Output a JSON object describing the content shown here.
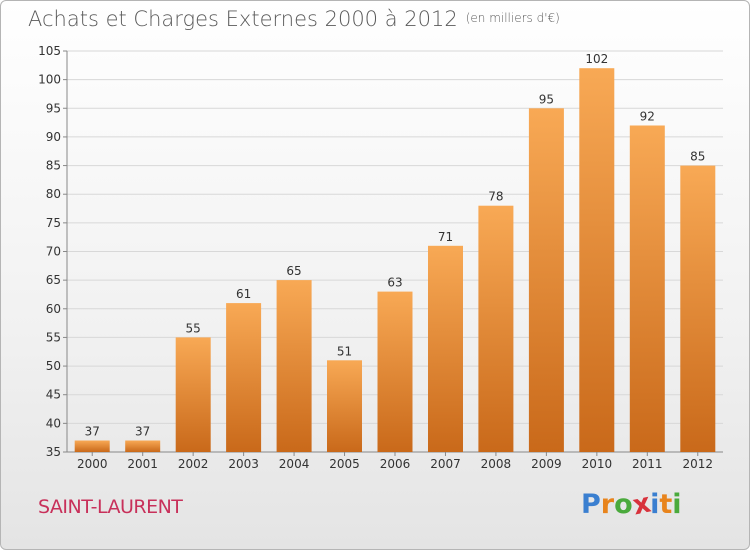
{
  "title": "Achats et Charges Externes 2000 à 2012",
  "unit": "(en milliers d'€)",
  "commune": "SAINT-LAURENT",
  "logo": {
    "text": "Proxiti",
    "letters": [
      "P",
      "r",
      "o",
      "x",
      "i",
      "t",
      "i"
    ],
    "colors": [
      "#3a7fd0",
      "#e8841c",
      "#4aaa3c",
      "#d8323c",
      "#3a7fd0",
      "#e8841c",
      "#4aaa3c"
    ]
  },
  "colors": {
    "bar_top": "#f8a955",
    "bar_bottom": "#c9691a",
    "grid": "#d8d8d8",
    "axis": "#888888"
  },
  "chart_data": {
    "type": "bar",
    "title": "Achats et Charges Externes 2000 à 2012",
    "subtitle": "(en milliers d'€)",
    "xlabel": "",
    "ylabel": "",
    "categories": [
      "2000",
      "2001",
      "2002",
      "2003",
      "2004",
      "2005",
      "2006",
      "2007",
      "2008",
      "2009",
      "2010",
      "2011",
      "2012"
    ],
    "values": [
      37,
      37,
      55,
      61,
      65,
      51,
      63,
      71,
      78,
      95,
      102,
      92,
      85
    ],
    "ylim": [
      35,
      105
    ],
    "yticks": [
      35,
      40,
      45,
      50,
      55,
      60,
      65,
      70,
      75,
      80,
      85,
      90,
      95,
      100,
      105
    ],
    "grid": true,
    "legend": "none"
  }
}
